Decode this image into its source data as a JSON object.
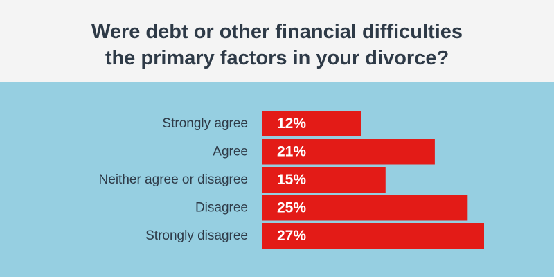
{
  "chart_data": {
    "type": "bar",
    "orientation": "horizontal",
    "title": "Were debt or other financial difficulties the primary factors in your divorce?",
    "title_lines": [
      "Were debt or other financial difficulties",
      "the primary factors in your divorce?"
    ],
    "categories": [
      "Strongly agree",
      "Agree",
      "Neither agree or disagree",
      "Disagree",
      "Strongly disagree"
    ],
    "values": [
      12,
      21,
      15,
      25,
      27
    ],
    "value_labels": [
      "12%",
      "21%",
      "15%",
      "25%",
      "27%"
    ],
    "unit": "%",
    "xlim": [
      0,
      27
    ],
    "grid": false,
    "legend": "none"
  },
  "colors": {
    "header_background": "#f4f4f4",
    "chart_background": "#96cfe1",
    "bar": "#e31b17",
    "title_text": "#2e3a47",
    "category_text": "#2e3a47",
    "value_text": "#ffffff"
  }
}
